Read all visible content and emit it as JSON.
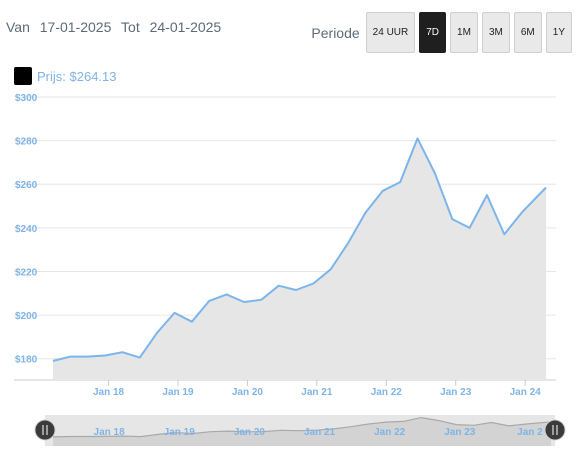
{
  "range": {
    "from_label": "Van",
    "from_date": "17-01-2025",
    "to_label": "Tot",
    "to_date": "24-01-2025"
  },
  "period": {
    "label": "Periode",
    "options": [
      "24 UUR",
      "7D",
      "1M",
      "3M",
      "6M",
      "1Y"
    ],
    "selected": "7D"
  },
  "legend": {
    "swatch_color": "#000000",
    "text": "Prijs: $264.13"
  },
  "chart_data": {
    "type": "area",
    "y_ticks": [
      "$180",
      "$200",
      "$220",
      "$240",
      "$260",
      "$280",
      "$300"
    ],
    "y_tick_values": [
      180,
      200,
      220,
      240,
      260,
      280,
      300
    ],
    "ylim": [
      173,
      300
    ],
    "x_ticks": [
      "Jan 18",
      "Jan 19",
      "Jan 20",
      "Jan 21",
      "Jan 22",
      "Jan 23",
      "Jan 24"
    ],
    "x_tick_values": [
      0.8,
      1.8,
      2.8,
      3.8,
      4.8,
      5.8,
      6.8
    ],
    "xlim": [
      0,
      7.1
    ],
    "series": [
      {
        "x": [
          0,
          0.25,
          0.5,
          0.75,
          1.0,
          1.25,
          1.5,
          1.75,
          2.0,
          2.25,
          2.5,
          2.75,
          3.0,
          3.25,
          3.5,
          3.75,
          4.0,
          4.25,
          4.5,
          4.75,
          5.0,
          5.25,
          5.5,
          5.75,
          6.0,
          6.25,
          6.5,
          6.75,
          7.1
        ],
        "values": [
          179,
          181,
          181,
          181.5,
          183,
          180.5,
          192,
          201,
          197,
          206.5,
          209.5,
          206,
          207,
          213.5,
          211.5,
          214.5,
          221,
          233,
          247,
          257,
          261,
          281,
          265,
          244,
          240,
          255,
          237,
          247,
          258.5
        ]
      }
    ],
    "line_color": "#7cb5ec",
    "fill_color": "#e6e6e6",
    "grid": true,
    "navigator": {
      "x_ticks": [
        "Jan 18",
        "Jan 19",
        "Jan 20",
        "Jan 21",
        "Jan 22",
        "Jan 23",
        "Jan 2"
      ]
    }
  }
}
